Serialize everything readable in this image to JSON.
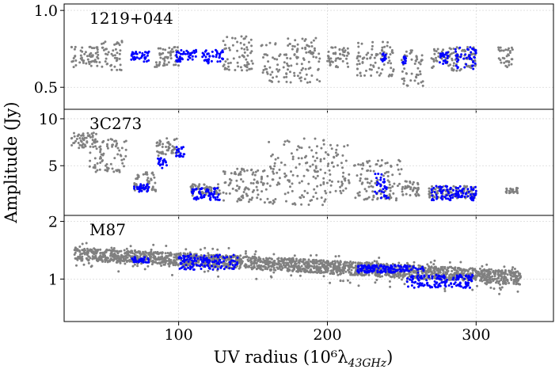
{
  "chart_data": {
    "type": "scatter",
    "xlabel": "UV radius (10⁶λ",
    "xlabel_sub": "43GHz",
    "xlabel_close": ")",
    "ylabel": "Amplitude (Jy)",
    "xlim": [
      23,
      352
    ],
    "x_ticks": [
      100,
      200,
      300
    ],
    "grid": true,
    "colors": {
      "other": "#808080",
      "highlight": "#0000ff"
    },
    "panels": [
      {
        "title": "1219+044",
        "yscale": "log",
        "ylim": [
          0.41,
          1.06
        ],
        "y_ticks": [
          {
            "v": 0.5,
            "label": "0.5"
          },
          {
            "v": 1.0,
            "label": "1.0"
          }
        ],
        "series": [
          {
            "color_key": "other",
            "clusters": [
              {
                "x": [
                  28,
                  47
                ],
                "y": [
                  0.6,
                  0.73
                ]
              },
              {
                "x": [
                  48,
                  62
                ],
                "y": [
                  0.58,
                  0.76
                ]
              },
              {
                "x": [
                  84,
                  100
                ],
                "y": [
                  0.6,
                  0.72
                ]
              },
              {
                "x": [
                  130,
                  150
                ],
                "y": [
                  0.58,
                  0.8
                ]
              },
              {
                "x": [
                  155,
                  195
                ],
                "y": [
                  0.52,
                  0.78
                ]
              },
              {
                "x": [
                  200,
                  215
                ],
                "y": [
                  0.6,
                  0.72
                ]
              },
              {
                "x": [
                  220,
                  245
                ],
                "y": [
                  0.55,
                  0.76
                ]
              },
              {
                "x": [
                  250,
                  265
                ],
                "y": [
                  0.5,
                  0.7
                ]
              },
              {
                "x": [
                  270,
                  300
                ],
                "y": [
                  0.58,
                  0.72
                ]
              },
              {
                "x": [
                  315,
                  325
                ],
                "y": [
                  0.6,
                  0.72
                ]
              }
            ]
          },
          {
            "color_key": "highlight",
            "clusters": [
              {
                "x": [
                  68,
                  80
                ],
                "y": [
                  0.63,
                  0.69
                ]
              },
              {
                "x": [
                  98,
                  112
                ],
                "y": [
                  0.63,
                  0.7
                ]
              },
              {
                "x": [
                  116,
                  130
                ],
                "y": [
                  0.62,
                  0.7
                ]
              },
              {
                "x": [
                  236,
                  240
                ],
                "y": [
                  0.63,
                  0.68
                ]
              },
              {
                "x": [
                  250,
                  253
                ],
                "y": [
                  0.61,
                  0.66
                ]
              },
              {
                "x": [
                  275,
                  282
                ],
                "y": [
                  0.61,
                  0.69
                ]
              },
              {
                "x": [
                  286,
                  300
                ],
                "y": [
                  0.59,
                  0.72
                ]
              }
            ]
          }
        ]
      },
      {
        "title": "3C273",
        "yscale": "log",
        "ylim": [
          2.4,
          11.5
        ],
        "y_ticks": [
          {
            "v": 5,
            "label": "5"
          },
          {
            "v": 10,
            "label": "10"
          }
        ],
        "series": [
          {
            "color_key": "other",
            "clusters": [
              {
                "x": [
                  28,
                  45
                ],
                "y": [
                  6.5,
                  8.2
                ]
              },
              {
                "x": [
                  40,
                  65
                ],
                "y": [
                  4.5,
                  7.5
                ]
              },
              {
                "x": [
                  70,
                  85
                ],
                "y": [
                  3.4,
                  4.6
                ]
              },
              {
                "x": [
                  85,
                  100
                ],
                "y": [
                  5.8,
                  7.5
                ]
              },
              {
                "x": [
                  108,
                  128
                ],
                "y": [
                  3.2,
                  3.8
                ]
              },
              {
                "x": [
                  130,
                  160
                ],
                "y": [
                  2.9,
                  4.8
                ]
              },
              {
                "x": [
                  160,
                  200
                ],
                "y": [
                  2.8,
                  7.6
                ]
              },
              {
                "x": [
                  200,
                  215
                ],
                "y": [
                  3.3,
                  6.8
                ]
              },
              {
                "x": [
                  218,
                  250
                ],
                "y": [
                  3.0,
                  5.5
                ]
              },
              {
                "x": [
                  250,
                  262
                ],
                "y": [
                  3.2,
                  4.0
                ]
              },
              {
                "x": [
                  268,
                  300
                ],
                "y": [
                  3.1,
                  3.7
                ]
              },
              {
                "x": [
                  320,
                  328
                ],
                "y": [
                  3.3,
                  3.6
                ]
              }
            ]
          },
          {
            "color_key": "highlight",
            "clusters": [
              {
                "x": [
                  70,
                  80
                ],
                "y": [
                  3.4,
                  3.8
                ]
              },
              {
                "x": [
                  86,
                  92
                ],
                "y": [
                  4.8,
                  5.6
                ]
              },
              {
                "x": [
                  98,
                  104
                ],
                "y": [
                  5.7,
                  6.6
                ]
              },
              {
                "x": [
                  108,
                  128
                ],
                "y": [
                  3.0,
                  3.6
                ]
              },
              {
                "x": [
                  232,
                  242
                ],
                "y": [
                  3.0,
                  4.5
                ]
              },
              {
                "x": [
                  270,
                  300
                ],
                "y": [
                  3.0,
                  3.7
                ]
              }
            ]
          }
        ]
      },
      {
        "title": "M87",
        "yscale": "log",
        "ylim": [
          0.6,
          2.15
        ],
        "y_ticks": [
          {
            "v": 1,
            "label": "1"
          },
          {
            "v": 2,
            "label": "2"
          }
        ],
        "series": [
          {
            "color_key": "other",
            "band": {
              "x": [
                30,
                330
              ],
              "y_start": [
                1.25,
                1.45
              ],
              "y_end": [
                0.93,
                1.1
              ],
              "spread_extra": 0.08
            }
          },
          {
            "color_key": "highlight",
            "clusters": [
              {
                "x": [
                  68,
                  80
                ],
                "y": [
                  1.22,
                  1.3
                ]
              },
              {
                "x": [
                  100,
                  140
                ],
                "y": [
                  1.12,
                  1.35
                ]
              },
              {
                "x": [
                  220,
                  265
                ],
                "y": [
                  1.08,
                  1.18
                ]
              },
              {
                "x": [
                  253,
                  298
                ],
                "y": [
                  0.9,
                  1.05
                ]
              }
            ]
          }
        ]
      }
    ]
  }
}
